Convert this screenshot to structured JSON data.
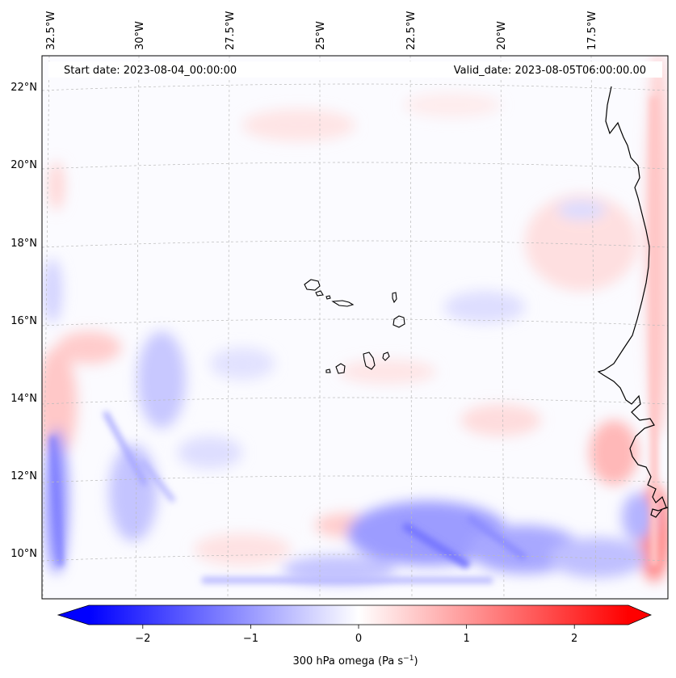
{
  "map": {
    "start_label": "Start date: 2023-08-04_00:00:00",
    "valid_label": "Valid_date: 2023-08-05T06:00:00.00",
    "lon_labels": [
      "32.5°W",
      "30°W",
      "27.5°W",
      "25°W",
      "22.5°W",
      "20°W",
      "17.5°W"
    ],
    "lat_labels": [
      "22°N",
      "20°N",
      "18°N",
      "16°N",
      "14°N",
      "12°N",
      "10°N"
    ],
    "colorbar": {
      "ticks": [
        "−2",
        "−1",
        "0",
        "1",
        "2"
      ],
      "tick_values": [
        -2,
        -1,
        0,
        1,
        2
      ],
      "range": [
        -2.5,
        2.5
      ],
      "label": "300 hPa omega (Pa s",
      "label_sup": "−1",
      "label_close": ")"
    },
    "colors": {
      "negative": "#0000ff",
      "zero": "#ffffff",
      "positive": "#ff0000",
      "coast": "#000000"
    }
  }
}
